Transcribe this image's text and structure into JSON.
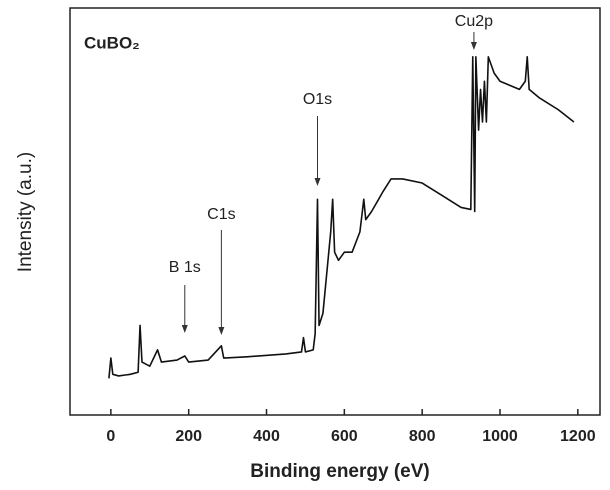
{
  "chart_data": {
    "type": "line",
    "title": "CuBO₂",
    "xlabel": "Binding energy (eV)",
    "ylabel": "Intensity (a.u.)",
    "xlim": [
      -105,
      1257
    ],
    "xticks": [
      0,
      200,
      400,
      600,
      800,
      1000,
      1200
    ],
    "ylim": [
      0,
      100
    ],
    "x": [
      -5,
      0,
      5,
      20,
      50,
      70,
      75,
      80,
      100,
      120,
      130,
      170,
      190,
      200,
      250,
      284,
      290,
      350,
      450,
      490,
      495,
      500,
      520,
      525,
      531,
      535,
      545,
      555,
      565,
      570,
      575,
      585,
      600,
      620,
      640,
      650,
      655,
      670,
      700,
      720,
      750,
      800,
      850,
      900,
      925,
      930,
      935,
      938,
      945,
      950,
      955,
      960,
      965,
      970,
      985,
      1000,
      1050,
      1065,
      1070,
      1075,
      1100,
      1150,
      1190
    ],
    "series": [
      {
        "color": "#111111",
        "values": [
          9,
          14,
          10,
          9.6,
          10,
          10.5,
          22,
          13,
          12,
          16,
          13,
          13.5,
          14.5,
          13,
          13.5,
          17,
          14,
          14.3,
          15,
          15.5,
          19,
          15.5,
          16,
          20,
          53,
          22,
          25,
          35,
          45,
          53,
          40,
          38,
          40,
          40,
          45,
          53,
          48,
          50,
          55,
          58,
          58,
          57,
          54,
          51,
          50.5,
          88,
          50,
          88,
          70,
          80,
          72,
          82,
          72,
          88,
          84,
          82,
          80,
          82,
          88,
          80,
          78,
          75,
          72
        ]
      }
    ],
    "annotations": [
      {
        "text": "B 1s",
        "x": 190
      },
      {
        "text": "C1s",
        "x": 284
      },
      {
        "text": "O1s",
        "x": 531
      },
      {
        "text": "Cu2p",
        "x": 933
      }
    ]
  }
}
